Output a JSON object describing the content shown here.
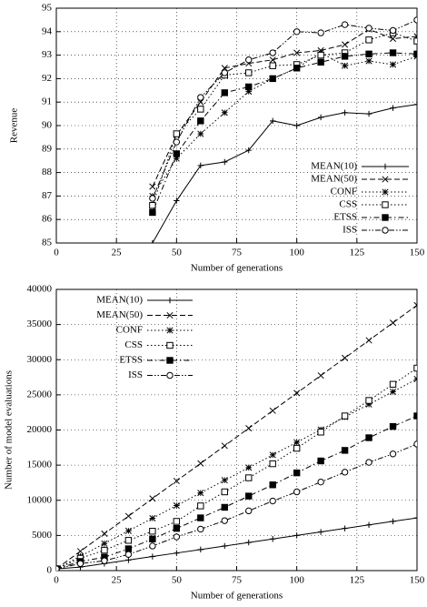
{
  "chart_data": [
    {
      "type": "line",
      "ylabel": "Revenue",
      "xlabel": "Number of generations",
      "x": [
        40,
        50,
        60,
        70,
        80,
        90,
        100,
        110,
        120,
        130,
        140,
        150
      ],
      "xlim": [
        0,
        150
      ],
      "xticks": [
        0,
        25,
        50,
        75,
        100,
        125,
        150
      ],
      "ylim": [
        85,
        95
      ],
      "yticks": [
        85,
        86,
        87,
        88,
        89,
        90,
        91,
        92,
        93,
        94,
        95
      ],
      "grid": true,
      "legend": "lower right",
      "series": [
        {
          "name": "MEAN(10)",
          "color": "#000000",
          "marker": "plus",
          "dash": "solid",
          "values": [
            85.0,
            86.8,
            88.3,
            88.45,
            88.95,
            90.2,
            90.0,
            90.35,
            90.55,
            90.5,
            90.75,
            90.9
          ]
        },
        {
          "name": "MEAN(50)",
          "color": "#000000",
          "marker": "cross",
          "dash": "dashed",
          "values": [
            87.4,
            89.6,
            91.0,
            92.45,
            92.65,
            92.8,
            93.1,
            93.2,
            93.45,
            94.1,
            93.7,
            93.8
          ]
        },
        {
          "name": "CONF",
          "color": "#000000",
          "marker": "star",
          "dash": "dotted",
          "values": [
            87.0,
            88.6,
            89.65,
            90.55,
            91.45,
            92.0,
            92.45,
            93.1,
            92.55,
            92.75,
            92.6,
            92.95
          ]
        },
        {
          "name": "CSS",
          "color": "#000000",
          "marker": "open-square",
          "dash": "dotted",
          "values": [
            86.6,
            89.65,
            90.7,
            92.15,
            92.25,
            92.55,
            92.6,
            93.0,
            93.1,
            93.65,
            93.95,
            93.6
          ]
        },
        {
          "name": "ETSS",
          "color": "#000000",
          "marker": "filled-square",
          "dash": "dashdot",
          "values": [
            86.3,
            88.8,
            90.2,
            91.4,
            91.65,
            92.0,
            92.45,
            92.7,
            92.95,
            93.05,
            93.1,
            93.05
          ]
        },
        {
          "name": "ISS",
          "color": "#000000",
          "marker": "open-circle",
          "dash": "dashdotdot",
          "values": [
            86.9,
            89.3,
            91.2,
            92.25,
            92.8,
            93.1,
            94.0,
            93.95,
            94.3,
            94.15,
            94.05,
            94.5
          ]
        }
      ]
    },
    {
      "type": "line",
      "ylabel": "Number of model evaluations",
      "xlabel": "Number of generations",
      "x": [
        0,
        10,
        20,
        30,
        40,
        50,
        60,
        70,
        80,
        90,
        100,
        110,
        120,
        130,
        140,
        150
      ],
      "xlim": [
        0,
        150
      ],
      "xticks": [
        0,
        25,
        50,
        75,
        100,
        125,
        150
      ],
      "ylim": [
        0,
        40000
      ],
      "yticks": [
        0,
        5000,
        10000,
        15000,
        20000,
        25000,
        30000,
        35000,
        40000
      ],
      "grid": true,
      "legend": "upper left",
      "series": [
        {
          "name": "MEAN(10)",
          "color": "#000000",
          "marker": "plus",
          "dash": "solid",
          "values": [
            250,
            500,
            1000,
            1500,
            2000,
            2500,
            3000,
            3500,
            4000,
            4500,
            5000,
            5500,
            6000,
            6500,
            7000,
            7500
          ]
        },
        {
          "name": "MEAN(50)",
          "color": "#000000",
          "marker": "cross",
          "dash": "dashed",
          "values": [
            250,
            2750,
            5250,
            7750,
            10250,
            12750,
            15250,
            17750,
            20250,
            22750,
            25250,
            27750,
            30250,
            32750,
            35250,
            37750
          ]
        },
        {
          "name": "CONF",
          "color": "#000000",
          "marker": "star",
          "dash": "dotted",
          "values": [
            250,
            2050,
            3850,
            5650,
            7450,
            9250,
            11050,
            12850,
            14650,
            16450,
            18250,
            20050,
            21850,
            23650,
            25450,
            27250
          ]
        },
        {
          "name": "CSS",
          "color": "#000000",
          "marker": "open-square",
          "dash": "dotted",
          "values": [
            250,
            1750,
            2900,
            4300,
            5600,
            7000,
            9200,
            11200,
            13200,
            15200,
            17400,
            19700,
            22000,
            24200,
            26500,
            28800
          ]
        },
        {
          "name": "ETSS",
          "color": "#000000",
          "marker": "filled-square",
          "dash": "dashdot",
          "values": [
            250,
            1300,
            1900,
            3100,
            4500,
            6000,
            7500,
            9000,
            10600,
            12200,
            13900,
            15600,
            17100,
            18900,
            20500,
            22000
          ]
        },
        {
          "name": "ISS",
          "color": "#000000",
          "marker": "open-circle",
          "dash": "dashdotdot",
          "values": [
            250,
            1000,
            1400,
            2300,
            3500,
            4800,
            5900,
            7100,
            8500,
            9900,
            11200,
            12600,
            14000,
            15400,
            16600,
            18000
          ]
        }
      ]
    }
  ]
}
